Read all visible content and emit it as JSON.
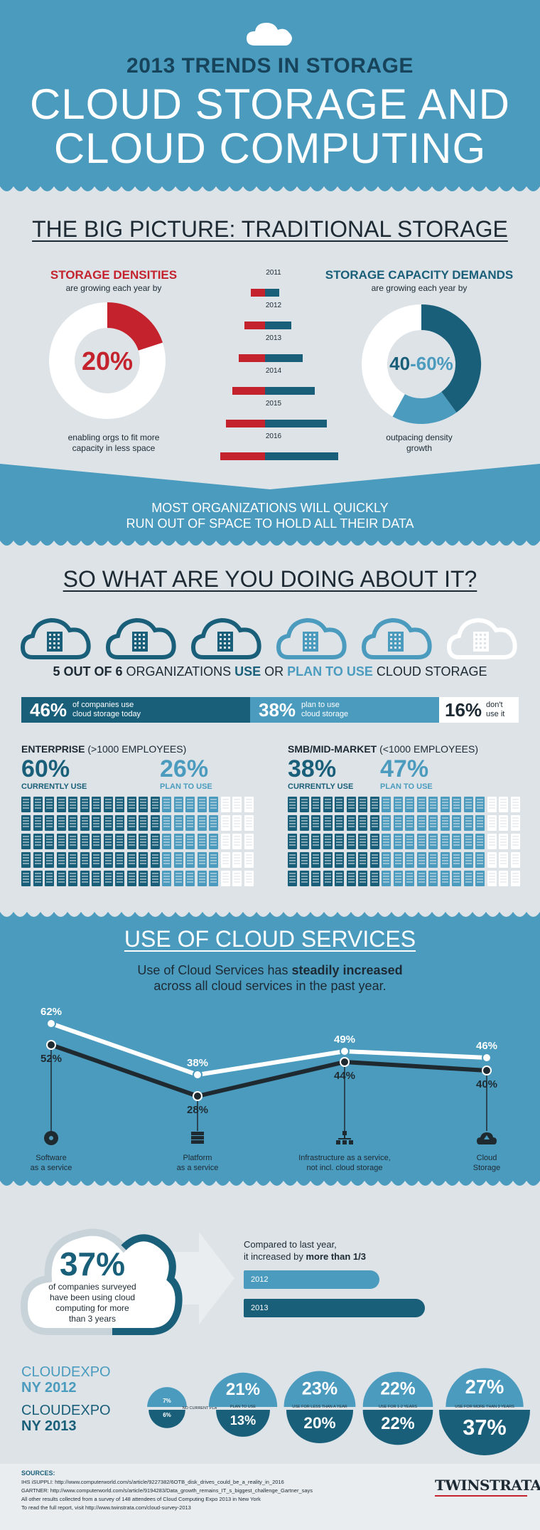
{
  "header": {
    "kicker": "2013 TRENDS IN STORAGE",
    "title_line1": "CLOUD STORAGE AND",
    "title_line2": "CLOUD COMPUTING"
  },
  "big_picture": {
    "heading": "THE BIG PICTURE: TRADITIONAL STORAGE",
    "densities": {
      "title": "STORAGE DENSITIES",
      "subtitle": "are growing each year by",
      "value_label": "20%",
      "value": 0.2,
      "caption_line1": "enabling orgs to fit more",
      "caption_line2": "capacity in less space"
    },
    "capacity": {
      "title": "STORAGE CAPACITY DEMANDS",
      "subtitle": "are growing each year by",
      "value_a": "40",
      "value_sep": "-",
      "value_b": "60%",
      "inner_fraction": 0.4,
      "outer_fraction": 0.6,
      "caption_line1": "outpacing density",
      "caption_line2": "growth"
    },
    "years": [
      "2011",
      "2012",
      "2013",
      "2014",
      "2015",
      "2016"
    ],
    "banner_line1": "MOST ORGANIZATIONS WILL QUICKLY",
    "banner_line2": "RUN OUT OF SPACE TO HOLD ALL THEIR DATA"
  },
  "doing": {
    "heading": "SO WHAT ARE YOU DOING ABOUT IT?",
    "clouds": [
      "use",
      "use",
      "use",
      "plan",
      "plan",
      "none"
    ],
    "stat_part1": "5 OUT OF 6",
    "stat_part2": " ORGANIZATIONS ",
    "stat_part3": "USE",
    "stat_part4": " OR ",
    "stat_part5": "PLAN TO USE",
    "stat_part6": " CLOUD STORAGE",
    "bar": [
      {
        "pct": "46%",
        "line1": "of companies use",
        "line2": "cloud storage today",
        "fraction": 0.46
      },
      {
        "pct": "38%",
        "line1": "plan to use",
        "line2": "cloud storage",
        "fraction": 0.38
      },
      {
        "pct": "16%",
        "line1": "don't",
        "line2": "use it",
        "fraction": 0.16
      }
    ],
    "enterprise": {
      "title": "ENTERPRISE",
      "note": " (>1000 EMPLOYEES)",
      "current_pct": "60%",
      "current_label": "CURRENTLY USE",
      "plan_pct": "26%",
      "plan_label": "PLAN TO USE",
      "current": 0.6,
      "plan": 0.26
    },
    "smb": {
      "title": "SMB/MID-MARKET",
      "note": " (<1000 EMPLOYEES)",
      "current_pct": "38%",
      "current_label": "CURRENTLY USE",
      "plan_pct": "47%",
      "plan_label": "PLAN TO USE",
      "current": 0.38,
      "plan": 0.47
    }
  },
  "services": {
    "heading": "USE OF CLOUD SERVICES",
    "sub_line1_a": "Use of Cloud Services has ",
    "sub_line1_b": "steadily increased",
    "sub_line2": "across all cloud services in the past year."
  },
  "chart_data": {
    "type": "line",
    "categories": [
      "Software as a service",
      "Platform as a service",
      "Infrastructure as a service, not incl. cloud storage",
      "Cloud Storage"
    ],
    "series": [
      {
        "values": [
          62,
          38,
          49,
          46
        ],
        "labels": [
          "62%",
          "38%",
          "49%",
          "46%"
        ],
        "color": "#ffffff"
      },
      {
        "values": [
          52,
          28,
          44,
          40
        ],
        "labels": [
          "52%",
          "28%",
          "44%",
          "40%"
        ],
        "color": "#1f2a30"
      }
    ],
    "ylim": [
      20,
      70
    ],
    "labels": [
      {
        "line1": "Software",
        "line2": "as a service",
        "icon": "disc-icon"
      },
      {
        "line1": "Platform",
        "line2": "as a service",
        "icon": "server-icon"
      },
      {
        "line1": "Infrastructure as a service,",
        "line2": "not incl. cloud storage",
        "icon": "network-icon"
      },
      {
        "line1": "Cloud",
        "line2": "Storage",
        "icon": "cloud-upload-icon"
      }
    ]
  },
  "computing": {
    "pct": "37%",
    "caption_line1": "of companies surveyed",
    "caption_line2": "have been using cloud",
    "caption_line3": "computing for more",
    "caption_line4": "than 3 years",
    "compare_line1": "Compared to last year,",
    "compare_line2_a": "it increased by ",
    "compare_line2_b": "more than 1/3",
    "bar_2012": "2012",
    "bar_2013": "2013",
    "bar_2012_fraction": 0.75,
    "bar_2013_fraction": 1.0
  },
  "cloudexpo": {
    "row1_line1": "CLOUDEXPO",
    "row1_line2": "NY 2012",
    "row2_line1": "CLOUDEXPO",
    "row2_line2": "NY 2013",
    "items": [
      {
        "label": "NO CURRENT PLANS",
        "v2012": "7%",
        "v2013": "6%"
      },
      {
        "label": "PLAN TO USE",
        "v2012": "21%",
        "v2013": "13%"
      },
      {
        "label": "USE FOR LESS THAN A YEAR",
        "v2012": "23%",
        "v2013": "20%"
      },
      {
        "label": "USE FOR 1-2 YEARS",
        "v2012": "22%",
        "v2013": "22%"
      },
      {
        "label": "USE FOR MORE THAN 3 YEARS",
        "v2012": "27%",
        "v2013": "37%"
      }
    ]
  },
  "footer": {
    "sources_title": "SOURCES:",
    "line1": "IHS iSUPPLI: http://www.computerworld.com/s/article/9227382/6OTB_disk_drives_could_be_a_reality_in_2016",
    "line2": "GARTNER: http://www.computerworld.com/s/article/9194283/Data_growth_remains_IT_s_biggest_challenge_Gartner_says",
    "line3": "All other results collected from a survey of 148 attendees of Cloud Computing Expo 2013 in New York",
    "line4": "To read the full report, visit http://www.twinstrata.com/cloud-survey-2013",
    "logo": "TWINSTRATA"
  }
}
